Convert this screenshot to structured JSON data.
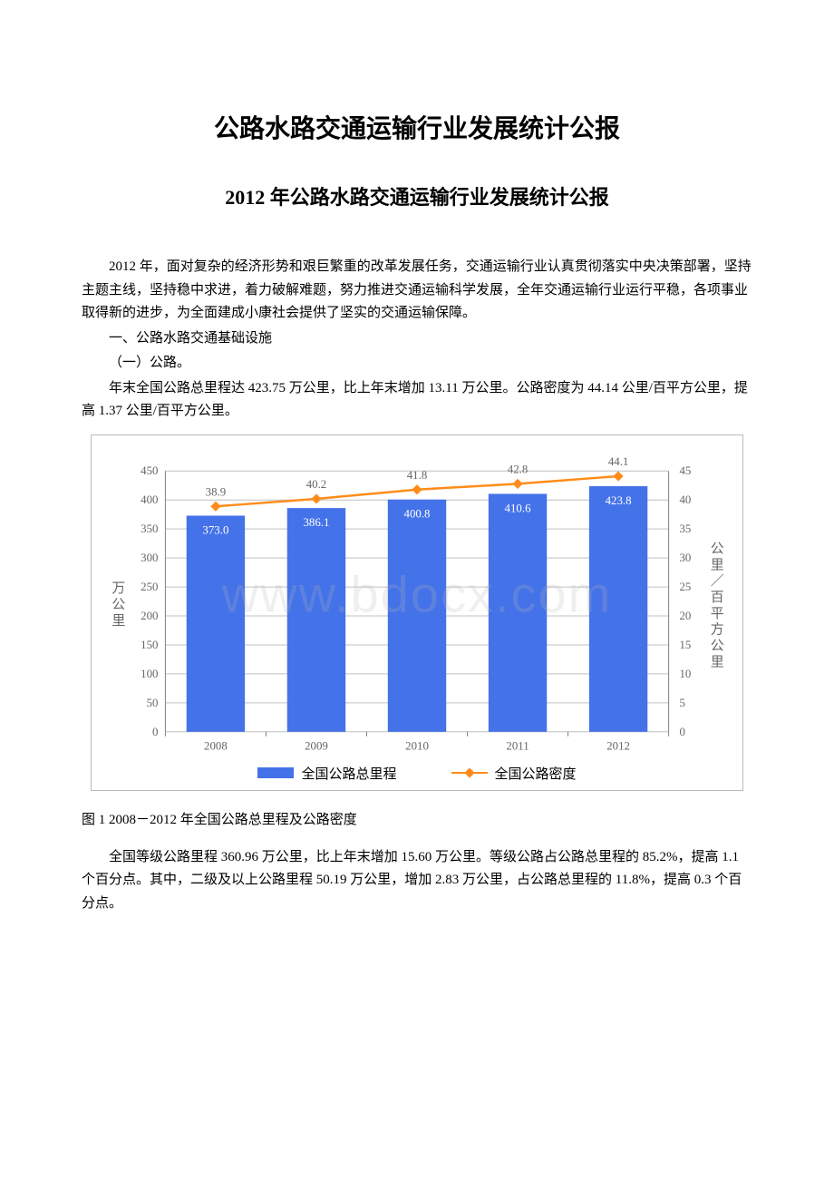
{
  "title_main": "公路水路交通运输行业发展统计公报",
  "title_sub": "2012 年公路水路交通运输行业发展统计公报",
  "para_intro": "2012 年，面对复杂的经济形势和艰巨繁重的改革发展任务，交通运输行业认真贯彻落实中央决策部署，坚持主题主线，坚持稳中求进，着力破解难题，努力推进交通运输科学发展，全年交通运输行业运行平稳，各项事业取得新的进步，为全面建成小康社会提供了坚实的交通运输保障。",
  "section_1": "一、公路水路交通基础设施",
  "section_1_1": "（一）公路。",
  "para_road_total": "年末全国公路总里程达 423.75 万公里，比上年末增加 13.11 万公里。公路密度为 44.14 公里/百平方公里，提高 1.37 公里/百平方公里。",
  "fig1_caption": "图 1  2008－2012 年全国公路总里程及公路密度",
  "para_graded": "全国等级公路里程 360.96 万公里，比上年末增加 15.60 万公里。等级公路占公路总里程的 85.2%，提高 1.1 个百分点。其中，二级及以上公路里程 50.19 万公里，增加 2.83 万公里，占公路总里程的 11.8%，提高 0.3 个百分点。",
  "chart": {
    "type": "bar+line",
    "categories": [
      "2008",
      "2009",
      "2010",
      "2011",
      "2012"
    ],
    "bar_values": [
      373.0,
      386.1,
      400.8,
      410.6,
      423.8
    ],
    "line_values": [
      38.9,
      40.2,
      41.8,
      42.8,
      44.1
    ],
    "bar_labels": [
      "373.0",
      "386.1",
      "400.8",
      "410.6",
      "423.8"
    ],
    "line_labels": [
      "38.9",
      "40.2",
      "41.8",
      "42.8",
      "44.1"
    ],
    "y1_label": "万公里",
    "y2_label": "公里／百平方公里",
    "y1_max": 450,
    "y1_step": 50,
    "y2_max": 45,
    "y2_step": 5,
    "bar_color": "#4472e8",
    "line_color": "#ff8c1a",
    "grid_color": "#c0c0c0",
    "axis_color": "#808080",
    "text_color": "#666666",
    "label_fontsize": 13,
    "axis_fontsize": 13,
    "legend_bar": "全国公路总里程",
    "legend_line": "全国公路密度",
    "watermark": "www.bdocx.com"
  }
}
